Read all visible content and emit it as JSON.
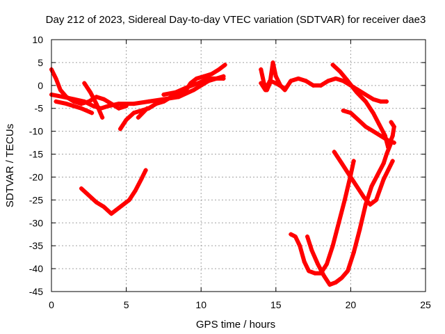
{
  "chart_data": {
    "type": "scatter",
    "title": "Day 212 of 2023, Sidereal Day-to-day VTEC variation (SDTVAR) for receiver dae3",
    "xlabel": "GPS time / hours",
    "ylabel": "SDTVAR / TECUs",
    "xlim": [
      0,
      25
    ],
    "ylim": [
      -45,
      10
    ],
    "xticks": [
      0,
      5,
      10,
      15,
      20,
      25
    ],
    "yticks": [
      10,
      5,
      0,
      -5,
      -10,
      -15,
      -20,
      -25,
      -30,
      -35,
      -40,
      -45
    ],
    "grid": true,
    "color": "#ff0000",
    "series": [
      {
        "points": [
          [
            0.0,
            3.5
          ],
          [
            0.3,
            1.5
          ],
          [
            0.6,
            -1.0
          ],
          [
            1.0,
            -2.5
          ],
          [
            1.5,
            -3.5
          ],
          [
            2.0,
            -4.0
          ],
          [
            2.5,
            -3.5
          ],
          [
            3.0,
            -2.5
          ],
          [
            3.5,
            -3.0
          ],
          [
            4.0,
            -4.0
          ],
          [
            4.5,
            -5.0
          ],
          [
            5.0,
            -4.5
          ]
        ]
      },
      {
        "points": [
          [
            0.0,
            -2.0
          ],
          [
            0.8,
            -2.5
          ],
          [
            1.5,
            -3.0
          ],
          [
            2.2,
            -3.5
          ],
          [
            2.8,
            -4.5
          ],
          [
            3.3,
            -5.0
          ],
          [
            3.8,
            -4.5
          ],
          [
            4.5,
            -4.0
          ],
          [
            5.5,
            -4.0
          ],
          [
            6.5,
            -3.5
          ],
          [
            7.5,
            -3.0
          ],
          [
            8.5,
            -2.5
          ],
          [
            9.5,
            -1.0
          ],
          [
            10.5,
            1.0
          ],
          [
            11.5,
            2.0
          ]
        ]
      },
      {
        "points": [
          [
            0.3,
            -3.5
          ],
          [
            1.0,
            -4.0
          ],
          [
            2.0,
            -5.0
          ],
          [
            2.7,
            -6.0
          ]
        ]
      },
      {
        "points": [
          [
            2.2,
            0.5
          ],
          [
            2.6,
            -1.5
          ],
          [
            3.0,
            -4.0
          ],
          [
            3.4,
            -7.0
          ]
        ]
      },
      {
        "points": [
          [
            4.6,
            -9.5
          ],
          [
            5.0,
            -7.5
          ],
          [
            5.5,
            -6.0
          ],
          [
            6.0,
            -5.5
          ],
          [
            6.5,
            -5.0
          ],
          [
            7.0,
            -4.0
          ],
          [
            7.5,
            -3.5
          ],
          [
            8.0,
            -2.5
          ],
          [
            8.5,
            -2.0
          ],
          [
            9.0,
            -1.0
          ],
          [
            9.3,
            0.5
          ],
          [
            9.7,
            1.5
          ],
          [
            10.2,
            2.0
          ],
          [
            10.7,
            2.5
          ],
          [
            11.2,
            3.5
          ],
          [
            11.6,
            4.5
          ]
        ]
      },
      {
        "points": [
          [
            5.8,
            -7.0
          ],
          [
            6.1,
            -6.0
          ],
          [
            6.4,
            -5.0
          ]
        ]
      },
      {
        "points": [
          [
            7.5,
            -2.0
          ],
          [
            8.3,
            -1.5
          ],
          [
            9.0,
            -0.5
          ],
          [
            9.8,
            0.5
          ],
          [
            10.5,
            1.5
          ],
          [
            11.5,
            1.5
          ]
        ]
      },
      {
        "points": [
          [
            2.0,
            -22.5
          ],
          [
            2.5,
            -24.0
          ],
          [
            3.0,
            -25.5
          ],
          [
            3.5,
            -26.5
          ],
          [
            4.0,
            -28.0
          ],
          [
            4.6,
            -26.5
          ],
          [
            5.2,
            -25.0
          ],
          [
            5.6,
            -23.0
          ],
          [
            6.0,
            -20.5
          ],
          [
            6.3,
            -18.5
          ]
        ]
      },
      {
        "points": [
          [
            14.0,
            3.5
          ],
          [
            14.2,
            0.5
          ],
          [
            14.4,
            -1.0
          ],
          [
            14.6,
            0.5
          ],
          [
            14.8,
            5.0
          ],
          [
            15.0,
            2.0
          ],
          [
            15.3,
            0.0
          ],
          [
            15.6,
            -1.0
          ],
          [
            16.0,
            1.0
          ],
          [
            16.5,
            1.5
          ],
          [
            17.0,
            1.0
          ],
          [
            17.5,
            0.0
          ],
          [
            18.0,
            0.0
          ],
          [
            18.5,
            1.0
          ],
          [
            19.0,
            1.5
          ],
          [
            19.5,
            1.0
          ],
          [
            20.0,
            0.0
          ],
          [
            20.5,
            -1.0
          ],
          [
            21.0,
            -2.0
          ],
          [
            21.5,
            -3.0
          ],
          [
            22.0,
            -3.5
          ],
          [
            22.4,
            -3.5
          ]
        ]
      },
      {
        "points": [
          [
            14.0,
            0.5
          ],
          [
            14.3,
            -1.0
          ],
          [
            14.6,
            1.0
          ],
          [
            15.0,
            0.5
          ],
          [
            15.5,
            -0.5
          ]
        ]
      },
      {
        "points": [
          [
            18.8,
            4.5
          ],
          [
            19.3,
            3.0
          ],
          [
            19.8,
            1.0
          ],
          [
            20.4,
            -1.5
          ],
          [
            21.0,
            -3.5
          ],
          [
            21.5,
            -6.0
          ],
          [
            21.9,
            -8.5
          ],
          [
            22.3,
            -11.0
          ],
          [
            22.5,
            -13.5
          ],
          [
            22.8,
            -11.0
          ],
          [
            22.9,
            -9.0
          ],
          [
            22.7,
            -8.0
          ]
        ]
      },
      {
        "points": [
          [
            19.5,
            -5.5
          ],
          [
            20.0,
            -6.0
          ],
          [
            20.5,
            -7.5
          ],
          [
            21.0,
            -9.0
          ],
          [
            21.5,
            -10.0
          ],
          [
            22.0,
            -11.0
          ],
          [
            22.5,
            -12.0
          ],
          [
            22.9,
            -12.5
          ]
        ]
      },
      {
        "points": [
          [
            16.0,
            -32.5
          ],
          [
            16.3,
            -33.0
          ],
          [
            16.6,
            -35.0
          ],
          [
            16.9,
            -38.5
          ],
          [
            17.2,
            -40.5
          ],
          [
            17.6,
            -41.0
          ],
          [
            18.0,
            -41.0
          ],
          [
            18.4,
            -39.0
          ],
          [
            18.8,
            -35.0
          ],
          [
            19.2,
            -30.0
          ],
          [
            19.6,
            -25.0
          ],
          [
            20.0,
            -19.5
          ],
          [
            20.2,
            -16.5
          ]
        ]
      },
      {
        "points": [
          [
            17.1,
            -33.0
          ],
          [
            17.4,
            -36.0
          ],
          [
            17.8,
            -39.0
          ],
          [
            18.2,
            -41.5
          ],
          [
            18.6,
            -43.5
          ],
          [
            19.0,
            -43.0
          ],
          [
            19.4,
            -42.0
          ],
          [
            19.8,
            -40.5
          ],
          [
            20.2,
            -36.5
          ],
          [
            20.6,
            -31.5
          ],
          [
            21.0,
            -26.0
          ],
          [
            21.4,
            -22.0
          ],
          [
            21.8,
            -19.5
          ],
          [
            22.2,
            -17.0
          ],
          [
            22.4,
            -15.0
          ],
          [
            22.7,
            -12.5
          ]
        ]
      },
      {
        "points": [
          [
            18.9,
            -14.5
          ],
          [
            19.4,
            -17.0
          ],
          [
            19.9,
            -19.5
          ],
          [
            20.4,
            -22.0
          ],
          [
            20.9,
            -24.5
          ],
          [
            21.3,
            -26.0
          ],
          [
            21.7,
            -25.0
          ],
          [
            22.2,
            -20.5
          ],
          [
            22.5,
            -18.5
          ],
          [
            22.8,
            -16.5
          ]
        ]
      }
    ]
  }
}
